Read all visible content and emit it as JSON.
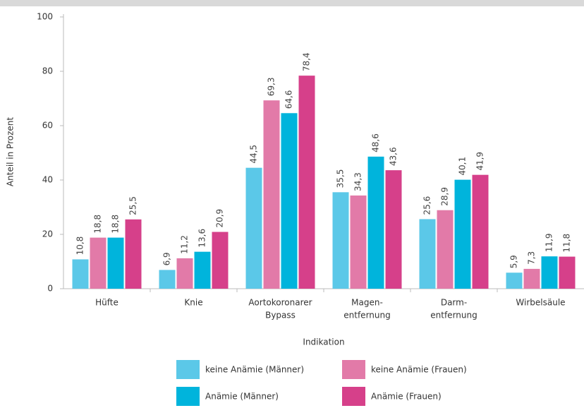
{
  "chart_data": {
    "type": "bar",
    "y_label": "Anteil in Prozent",
    "x_label": "Indikation",
    "categories": [
      [
        "Hüfte"
      ],
      [
        "Knie"
      ],
      [
        "Aortokoronarer",
        "Bypass"
      ],
      [
        "Magen-",
        "entfernung"
      ],
      [
        "Darm-",
        "entfernung"
      ],
      [
        "Wirbelsäule"
      ]
    ],
    "series": [
      {
        "name": "keine Anämie (Männer)",
        "color": "#5bc8e8",
        "values": [
          10.8,
          6.9,
          44.5,
          35.5,
          25.6,
          5.9
        ],
        "value_labels": [
          "10,8",
          "6,9",
          "44,5",
          "35,5",
          "25,6",
          "5,9"
        ]
      },
      {
        "name": "keine Anämie (Frauen)",
        "color": "#e27aa8",
        "values": [
          18.8,
          11.2,
          69.3,
          34.3,
          28.9,
          7.3
        ],
        "value_labels": [
          "18,8",
          "11,2",
          "69,3",
          "34,3",
          "28,9",
          "7,3"
        ]
      },
      {
        "name": "Anämie (Männer)",
        "color": "#00b4dc",
        "values": [
          18.8,
          13.6,
          64.6,
          48.6,
          40.1,
          11.9
        ],
        "value_labels": [
          "18,8",
          "13,6",
          "64,6",
          "48,6",
          "40,1",
          "11,9"
        ]
      },
      {
        "name": "Anämie (Frauen)",
        "color": "#d6408a",
        "values": [
          25.5,
          20.9,
          78.4,
          43.6,
          41.9,
          11.8
        ],
        "value_labels": [
          "25,5",
          "20,9",
          "78,4",
          "43,6",
          "41,9",
          "11,8"
        ]
      }
    ],
    "ylim": [
      0,
      100
    ],
    "yticks": [
      0,
      20,
      40,
      60,
      80,
      100
    ],
    "grid": false
  }
}
